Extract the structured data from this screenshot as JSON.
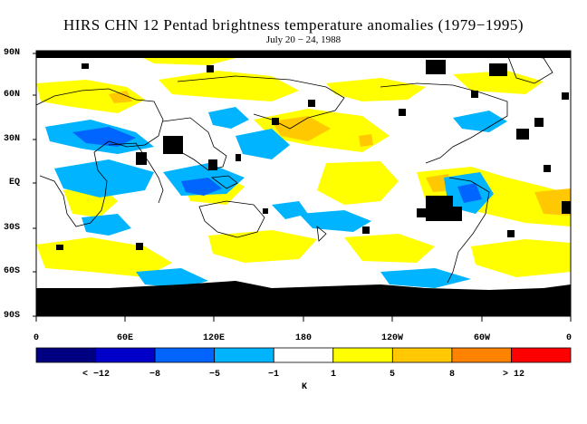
{
  "title": "HIRS CHN 12 Pentad brightness temperature anomalies (1979−1995)",
  "subtitle": "July 20 − 24, 1988",
  "latitude_labels": [
    "90N",
    "60N",
    "30N",
    "EQ",
    "30S",
    "60S",
    "90S"
  ],
  "longitude_labels": [
    "0",
    "60E",
    "120E",
    "180",
    "120W",
    "60W",
    "0"
  ],
  "colorbar": {
    "colors": [
      "#000080",
      "#0000c8",
      "#0064ff",
      "#00b4ff",
      "#ffffff",
      "#ffff00",
      "#ffc800",
      "#ff8200",
      "#ff0000"
    ],
    "labels": [
      "< −12",
      "−8",
      "−5",
      "−1",
      "1",
      "5",
      "8",
      "> 12"
    ],
    "unit": "K"
  },
  "map_colors": {
    "missing": "#000000",
    "land_outline": "#000000"
  }
}
